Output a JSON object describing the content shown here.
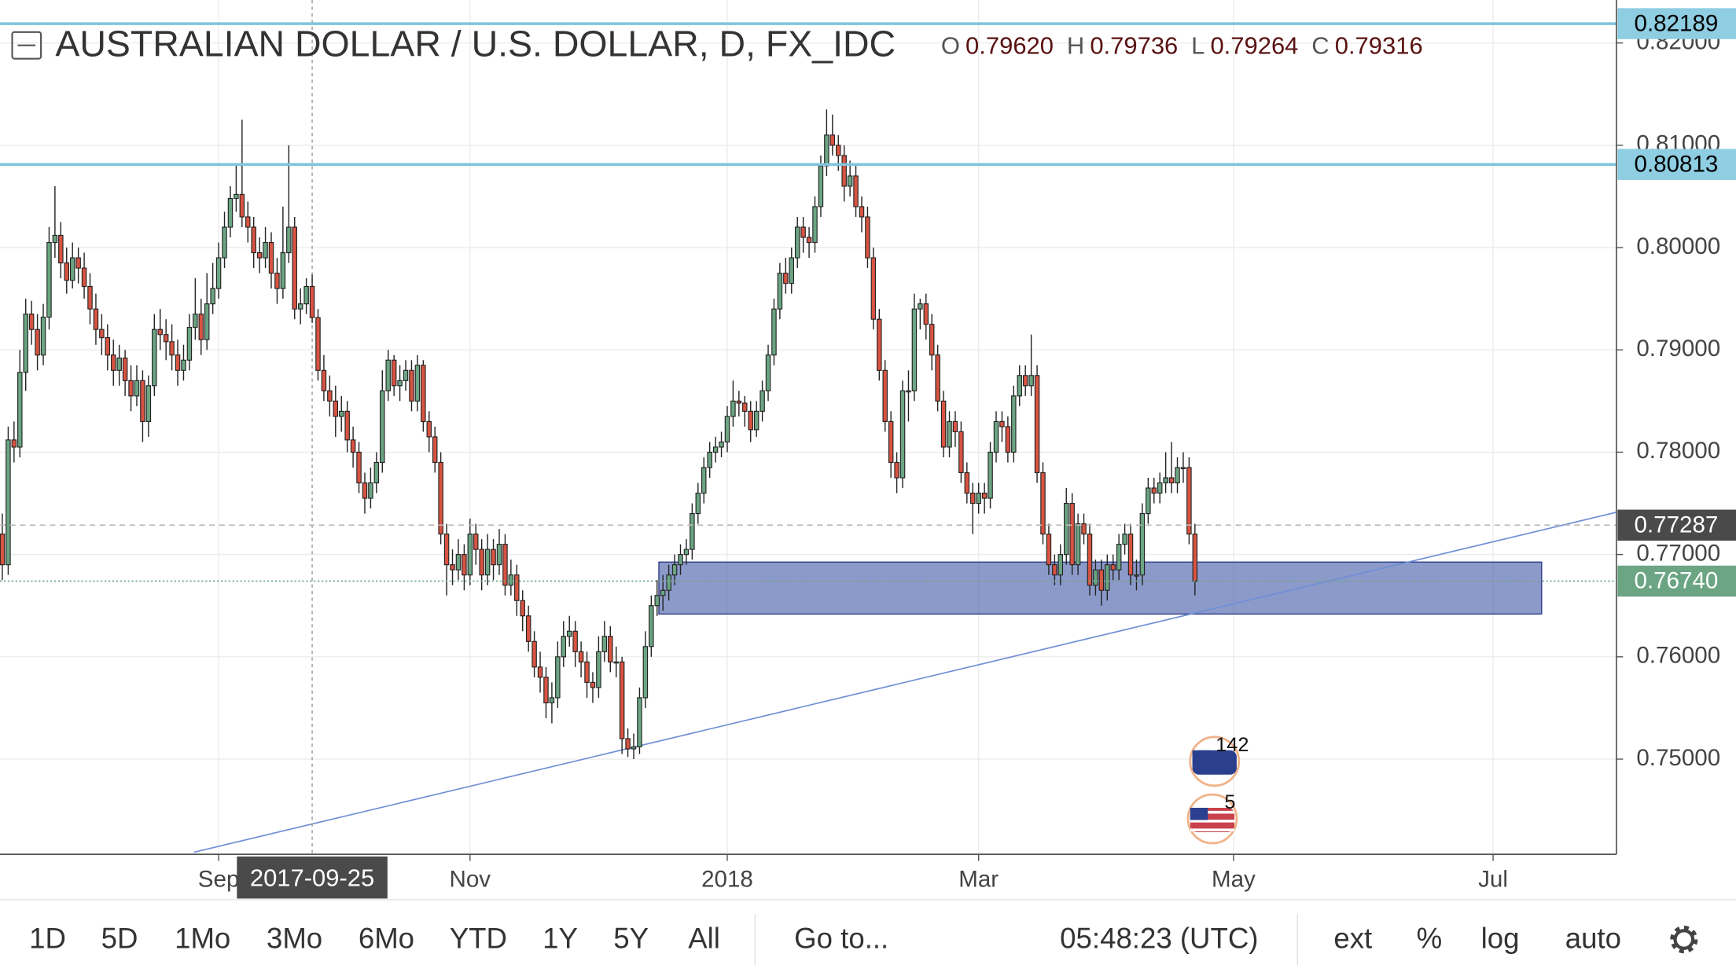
{
  "chart_data": {
    "type": "candlestick",
    "title": "AUSTRALIAN DOLLAR / U.S. DOLLAR, D, FX_IDC",
    "ohlc_legend": [
      {
        "key": "O",
        "value": "0.79620"
      },
      {
        "key": "H",
        "value": "0.79736"
      },
      {
        "key": "L",
        "value": "0.79264"
      },
      {
        "key": "C",
        "value": "0.79316"
      }
    ],
    "up_color": "#6ba583",
    "down_color": "#d75442",
    "ohlc": [
      [
        0.772,
        0.774,
        0.7675,
        0.769
      ],
      [
        0.769,
        0.7825,
        0.768,
        0.7812
      ],
      [
        0.7812,
        0.783,
        0.779,
        0.7805
      ],
      [
        0.7805,
        0.79,
        0.7795,
        0.7878
      ],
      [
        0.7878,
        0.795,
        0.786,
        0.7935
      ],
      [
        0.7935,
        0.7948,
        0.7905,
        0.792
      ],
      [
        0.792,
        0.7935,
        0.788,
        0.7895
      ],
      [
        0.7895,
        0.7945,
        0.7885,
        0.7932
      ],
      [
        0.7932,
        0.802,
        0.792,
        0.8005
      ],
      [
        0.8005,
        0.806,
        0.799,
        0.8012
      ],
      [
        0.8012,
        0.8025,
        0.797,
        0.7985
      ],
      [
        0.7985,
        0.8,
        0.7955,
        0.7968
      ],
      [
        0.7968,
        0.8005,
        0.796,
        0.799
      ],
      [
        0.799,
        0.8,
        0.7965,
        0.798
      ],
      [
        0.798,
        0.7995,
        0.795,
        0.7962
      ],
      [
        0.7962,
        0.7975,
        0.7925,
        0.794
      ],
      [
        0.794,
        0.7955,
        0.7905,
        0.792
      ],
      [
        0.792,
        0.7935,
        0.7895,
        0.7912
      ],
      [
        0.7912,
        0.7925,
        0.788,
        0.7895
      ],
      [
        0.7895,
        0.791,
        0.7865,
        0.788
      ],
      [
        0.788,
        0.7905,
        0.7865,
        0.7892
      ],
      [
        0.7892,
        0.79,
        0.7855,
        0.787
      ],
      [
        0.787,
        0.7885,
        0.784,
        0.7855
      ],
      [
        0.7855,
        0.7885,
        0.7845,
        0.787
      ],
      [
        0.787,
        0.788,
        0.781,
        0.783
      ],
      [
        0.783,
        0.7875,
        0.7815,
        0.7865
      ],
      [
        0.7865,
        0.7935,
        0.7855,
        0.792
      ],
      [
        0.792,
        0.794,
        0.79,
        0.7915
      ],
      [
        0.7915,
        0.793,
        0.789,
        0.7908
      ],
      [
        0.7908,
        0.7925,
        0.788,
        0.7895
      ],
      [
        0.7895,
        0.791,
        0.7865,
        0.788
      ],
      [
        0.788,
        0.7905,
        0.787,
        0.789
      ],
      [
        0.789,
        0.7935,
        0.788,
        0.7922
      ],
      [
        0.7922,
        0.797,
        0.791,
        0.7935
      ],
      [
        0.7935,
        0.795,
        0.7895,
        0.791
      ],
      [
        0.791,
        0.7975,
        0.79,
        0.7945
      ],
      [
        0.7945,
        0.7985,
        0.7935,
        0.796
      ],
      [
        0.796,
        0.8005,
        0.795,
        0.799
      ],
      [
        0.799,
        0.8035,
        0.798,
        0.802
      ],
      [
        0.802,
        0.806,
        0.801,
        0.8048
      ],
      [
        0.8048,
        0.808,
        0.8035,
        0.8052
      ],
      [
        0.8052,
        0.8125,
        0.802,
        0.803
      ],
      [
        0.803,
        0.8045,
        0.8005,
        0.802
      ],
      [
        0.802,
        0.803,
        0.798,
        0.7995
      ],
      [
        0.7995,
        0.801,
        0.7975,
        0.799
      ],
      [
        0.799,
        0.802,
        0.798,
        0.8005
      ],
      [
        0.8005,
        0.8015,
        0.796,
        0.7975
      ],
      [
        0.7975,
        0.799,
        0.7945,
        0.796
      ],
      [
        0.796,
        0.804,
        0.795,
        0.7995
      ],
      [
        0.7995,
        0.81,
        0.7985,
        0.802
      ],
      [
        0.802,
        0.803,
        0.793,
        0.794
      ],
      [
        0.794,
        0.796,
        0.7925,
        0.7945
      ],
      [
        0.7945,
        0.797,
        0.7935,
        0.7962
      ],
      [
        0.7962,
        0.79736,
        0.79264,
        0.79316
      ],
      [
        0.79316,
        0.794,
        0.787,
        0.788
      ],
      [
        0.788,
        0.7895,
        0.785,
        0.786
      ],
      [
        0.786,
        0.7875,
        0.7835,
        0.785
      ],
      [
        0.785,
        0.7865,
        0.7815,
        0.7835
      ],
      [
        0.7835,
        0.7855,
        0.782,
        0.784
      ],
      [
        0.784,
        0.785,
        0.78,
        0.7812
      ],
      [
        0.7812,
        0.7825,
        0.7785,
        0.78
      ],
      [
        0.78,
        0.781,
        0.776,
        0.777
      ],
      [
        0.777,
        0.778,
        0.774,
        0.7755
      ],
      [
        0.7755,
        0.7785,
        0.7745,
        0.777
      ],
      [
        0.777,
        0.78,
        0.776,
        0.779
      ],
      [
        0.779,
        0.788,
        0.778,
        0.786
      ],
      [
        0.786,
        0.79,
        0.785,
        0.789
      ],
      [
        0.789,
        0.7895,
        0.7855,
        0.7865
      ],
      [
        0.7865,
        0.7885,
        0.785,
        0.787
      ],
      [
        0.787,
        0.789,
        0.786,
        0.788
      ],
      [
        0.788,
        0.789,
        0.784,
        0.785
      ],
      [
        0.785,
        0.7895,
        0.784,
        0.7885
      ],
      [
        0.7885,
        0.789,
        0.782,
        0.783
      ],
      [
        0.783,
        0.784,
        0.78,
        0.7815
      ],
      [
        0.7815,
        0.7825,
        0.778,
        0.779
      ],
      [
        0.779,
        0.78,
        0.771,
        0.772
      ],
      [
        0.772,
        0.773,
        0.766,
        0.769
      ],
      [
        0.769,
        0.7705,
        0.767,
        0.7685
      ],
      [
        0.7685,
        0.7715,
        0.7675,
        0.77
      ],
      [
        0.77,
        0.771,
        0.7665,
        0.768
      ],
      [
        0.768,
        0.7735,
        0.767,
        0.772
      ],
      [
        0.772,
        0.773,
        0.769,
        0.7705
      ],
      [
        0.7705,
        0.7715,
        0.7665,
        0.768
      ],
      [
        0.768,
        0.772,
        0.767,
        0.7705
      ],
      [
        0.7705,
        0.7715,
        0.7675,
        0.769
      ],
      [
        0.769,
        0.7725,
        0.768,
        0.771
      ],
      [
        0.771,
        0.772,
        0.766,
        0.767
      ],
      [
        0.767,
        0.7695,
        0.766,
        0.768
      ],
      [
        0.768,
        0.769,
        0.764,
        0.7655
      ],
      [
        0.7655,
        0.7665,
        0.7625,
        0.764
      ],
      [
        0.764,
        0.765,
        0.7605,
        0.7615
      ],
      [
        0.7615,
        0.7625,
        0.758,
        0.759
      ],
      [
        0.759,
        0.7605,
        0.7565,
        0.758
      ],
      [
        0.758,
        0.759,
        0.754,
        0.7555
      ],
      [
        0.7555,
        0.7575,
        0.7535,
        0.756
      ],
      [
        0.756,
        0.7615,
        0.755,
        0.76
      ],
      [
        0.76,
        0.7635,
        0.759,
        0.762
      ],
      [
        0.762,
        0.764,
        0.761,
        0.7625
      ],
      [
        0.7625,
        0.7635,
        0.759,
        0.7605
      ],
      [
        0.7605,
        0.7615,
        0.758,
        0.7595
      ],
      [
        0.7595,
        0.7605,
        0.756,
        0.7575
      ],
      [
        0.7575,
        0.7585,
        0.7555,
        0.757
      ],
      [
        0.757,
        0.762,
        0.756,
        0.7605
      ],
      [
        0.7605,
        0.7635,
        0.7595,
        0.762
      ],
      [
        0.762,
        0.763,
        0.7585,
        0.7595
      ],
      [
        0.7595,
        0.761,
        0.758,
        0.7595
      ],
      [
        0.7595,
        0.76,
        0.7505,
        0.752
      ],
      [
        0.752,
        0.753,
        0.7502,
        0.751
      ],
      [
        0.751,
        0.7525,
        0.75,
        0.7512
      ],
      [
        0.7512,
        0.757,
        0.7505,
        0.756
      ],
      [
        0.756,
        0.7625,
        0.755,
        0.761
      ],
      [
        0.761,
        0.766,
        0.76,
        0.765
      ],
      [
        0.765,
        0.7675,
        0.764,
        0.766
      ],
      [
        0.766,
        0.768,
        0.7645,
        0.7665
      ],
      [
        0.7665,
        0.769,
        0.7655,
        0.768
      ],
      [
        0.768,
        0.77,
        0.767,
        0.769
      ],
      [
        0.769,
        0.771,
        0.768,
        0.77
      ],
      [
        0.77,
        0.7715,
        0.769,
        0.7705
      ],
      [
        0.7705,
        0.775,
        0.7695,
        0.774
      ],
      [
        0.774,
        0.777,
        0.773,
        0.776
      ],
      [
        0.776,
        0.7795,
        0.775,
        0.7785
      ],
      [
        0.7785,
        0.781,
        0.7775,
        0.78
      ],
      [
        0.78,
        0.7815,
        0.779,
        0.7805
      ],
      [
        0.7805,
        0.782,
        0.7795,
        0.781
      ],
      [
        0.781,
        0.7845,
        0.78,
        0.7835
      ],
      [
        0.7835,
        0.787,
        0.7825,
        0.785
      ],
      [
        0.785,
        0.786,
        0.7835,
        0.7848
      ],
      [
        0.7848,
        0.7855,
        0.7825,
        0.784
      ],
      [
        0.784,
        0.785,
        0.781,
        0.7822
      ],
      [
        0.7822,
        0.785,
        0.7815,
        0.784
      ],
      [
        0.784,
        0.787,
        0.783,
        0.786
      ],
      [
        0.786,
        0.7905,
        0.785,
        0.7895
      ],
      [
        0.7895,
        0.795,
        0.7885,
        0.794
      ],
      [
        0.794,
        0.7985,
        0.793,
        0.7975
      ],
      [
        0.7975,
        0.799,
        0.7955,
        0.7965
      ],
      [
        0.7965,
        0.8,
        0.7955,
        0.799
      ],
      [
        0.799,
        0.803,
        0.798,
        0.802
      ],
      [
        0.802,
        0.803,
        0.7995,
        0.801
      ],
      [
        0.801,
        0.802,
        0.799,
        0.8005
      ],
      [
        0.8005,
        0.805,
        0.7995,
        0.804
      ],
      [
        0.804,
        0.809,
        0.803,
        0.808
      ],
      [
        0.808,
        0.8135,
        0.807,
        0.811
      ],
      [
        0.811,
        0.813,
        0.809,
        0.81
      ],
      [
        0.81,
        0.811,
        0.8075,
        0.809
      ],
      [
        0.809,
        0.81,
        0.8045,
        0.806
      ],
      [
        0.806,
        0.8085,
        0.805,
        0.807
      ],
      [
        0.807,
        0.808,
        0.803,
        0.804
      ],
      [
        0.804,
        0.805,
        0.8015,
        0.803
      ],
      [
        0.803,
        0.804,
        0.798,
        0.799
      ],
      [
        0.799,
        0.8,
        0.792,
        0.793
      ],
      [
        0.793,
        0.794,
        0.787,
        0.788
      ],
      [
        0.788,
        0.789,
        0.782,
        0.783
      ],
      [
        0.783,
        0.784,
        0.7775,
        0.779
      ],
      [
        0.779,
        0.78,
        0.776,
        0.7775
      ],
      [
        0.7775,
        0.787,
        0.7765,
        0.786
      ],
      [
        0.786,
        0.788,
        0.783,
        0.786
      ],
      [
        0.786,
        0.7955,
        0.785,
        0.794
      ],
      [
        0.794,
        0.795,
        0.792,
        0.7945
      ],
      [
        0.7945,
        0.7955,
        0.791,
        0.7925
      ],
      [
        0.7925,
        0.7935,
        0.788,
        0.7895
      ],
      [
        0.7895,
        0.7905,
        0.784,
        0.785
      ],
      [
        0.785,
        0.786,
        0.7795,
        0.7805
      ],
      [
        0.7805,
        0.784,
        0.7795,
        0.783
      ],
      [
        0.783,
        0.784,
        0.7805,
        0.782
      ],
      [
        0.782,
        0.783,
        0.777,
        0.778
      ],
      [
        0.778,
        0.779,
        0.775,
        0.776
      ],
      [
        0.776,
        0.777,
        0.772,
        0.775
      ],
      [
        0.775,
        0.777,
        0.774,
        0.776
      ],
      [
        0.776,
        0.777,
        0.774,
        0.7755
      ],
      [
        0.7755,
        0.781,
        0.7745,
        0.78
      ],
      [
        0.78,
        0.784,
        0.779,
        0.783
      ],
      [
        0.783,
        0.784,
        0.781,
        0.7825
      ],
      [
        0.7825,
        0.7835,
        0.779,
        0.78
      ],
      [
        0.78,
        0.7865,
        0.779,
        0.7855
      ],
      [
        0.7855,
        0.7885,
        0.7845,
        0.7875
      ],
      [
        0.7875,
        0.7885,
        0.7855,
        0.7865
      ],
      [
        0.7865,
        0.7915,
        0.7855,
        0.7875
      ],
      [
        0.7875,
        0.7885,
        0.777,
        0.778
      ],
      [
        0.778,
        0.779,
        0.771,
        0.772
      ],
      [
        0.772,
        0.773,
        0.768,
        0.769
      ],
      [
        0.769,
        0.77,
        0.767,
        0.768
      ],
      [
        0.768,
        0.771,
        0.767,
        0.77
      ],
      [
        0.77,
        0.7765,
        0.769,
        0.775
      ],
      [
        0.775,
        0.776,
        0.768,
        0.769
      ],
      [
        0.769,
        0.774,
        0.768,
        0.773
      ],
      [
        0.773,
        0.774,
        0.771,
        0.772
      ],
      [
        0.772,
        0.773,
        0.766,
        0.767
      ],
      [
        0.767,
        0.7695,
        0.766,
        0.7685
      ],
      [
        0.7685,
        0.7695,
        0.765,
        0.7665
      ],
      [
        0.7665,
        0.77,
        0.7655,
        0.769
      ],
      [
        0.769,
        0.77,
        0.7675,
        0.7685
      ],
      [
        0.7685,
        0.772,
        0.7675,
        0.771
      ],
      [
        0.771,
        0.773,
        0.77,
        0.772
      ],
      [
        0.772,
        0.773,
        0.767,
        0.768
      ],
      [
        0.768,
        0.7695,
        0.7665,
        0.768
      ],
      [
        0.768,
        0.775,
        0.767,
        0.774
      ],
      [
        0.774,
        0.7775,
        0.773,
        0.7765
      ],
      [
        0.7765,
        0.7775,
        0.775,
        0.776
      ],
      [
        0.776,
        0.778,
        0.775,
        0.777
      ],
      [
        0.777,
        0.78,
        0.776,
        0.7775
      ],
      [
        0.7775,
        0.781,
        0.776,
        0.777
      ],
      [
        0.777,
        0.7795,
        0.776,
        0.7785
      ],
      [
        0.7785,
        0.78,
        0.777,
        0.7785
      ],
      [
        0.7785,
        0.7795,
        0.771,
        0.772
      ],
      [
        0.772,
        0.773,
        0.766,
        0.7674
      ]
    ],
    "xlim": [
      -0.4,
      276.1
    ],
    "xticks": [
      {
        "value": 37,
        "label": "Sep"
      },
      {
        "value": 80,
        "label": "Nov"
      },
      {
        "value": 124,
        "label": "2018"
      },
      {
        "value": 167,
        "label": "Mar"
      },
      {
        "value": 210.6,
        "label": "May"
      },
      {
        "value": 255,
        "label": "Jul"
      }
    ],
    "ylim": [
      0.7407,
      0.8242
    ],
    "yticks": [
      {
        "value": 0.75,
        "label": "0.75000"
      },
      {
        "value": 0.76,
        "label": "0.76000"
      },
      {
        "value": 0.77,
        "label": "0.77000"
      },
      {
        "value": 0.78,
        "label": "0.78000"
      },
      {
        "value": 0.79,
        "label": "0.79000"
      },
      {
        "value": 0.8,
        "label": "0.80000"
      },
      {
        "value": 0.81,
        "label": "0.81000"
      },
      {
        "value": 0.82,
        "label": "0.82000"
      }
    ],
    "grid": true,
    "price_lines": [
      {
        "value": 0.82189,
        "style": "solid",
        "color": "#7fc4dc",
        "label_bg": "#8ecde2",
        "label_color": "#000000"
      },
      {
        "value": 0.80813,
        "style": "solid",
        "color": "#7fc4dc",
        "label_bg": "#8ecde2",
        "label_color": "#000000"
      },
      {
        "value": 0.77287,
        "style": "dashed",
        "color": "#bbbbbb",
        "label_bg": "#4a4a4a",
        "label_color": "#ffffff"
      },
      {
        "value": 0.7674,
        "label": "0.76740",
        "style": "dotted",
        "color": "#6ba583",
        "label_bg": "#6ba583",
        "label_color": "#ffffff"
      }
    ],
    "zone": {
      "x": [
        112.3,
        263.3
      ],
      "y": [
        0.76418,
        0.76926
      ],
      "color": "#4e64ad"
    },
    "trendline": {
      "x": [
        32.8,
        276.1
      ],
      "y": [
        0.7409,
        0.77413
      ],
      "color": "#6f8fd6"
    },
    "crosshair": {
      "x": 53,
      "label": "2017-09-25"
    },
    "event_counts": [
      142,
      5
    ]
  },
  "toolbar": {
    "ranges": [
      "1D",
      "5D",
      "1Mo",
      "3Mo",
      "6Mo",
      "YTD",
      "1Y",
      "5Y",
      "All"
    ],
    "goto": "Go to...",
    "clock": "05:48:23 (UTC)",
    "options": [
      "ext",
      "%",
      "log",
      "auto"
    ]
  }
}
